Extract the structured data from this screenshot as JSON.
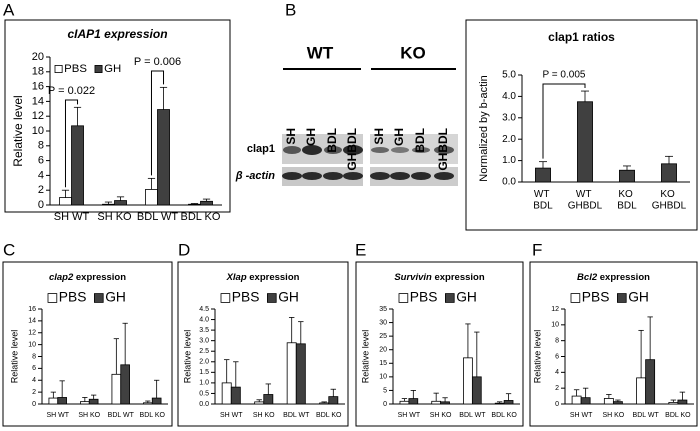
{
  "figure": {
    "panel_labels": [
      "A",
      "B",
      "C",
      "D",
      "E",
      "F"
    ],
    "blot": {
      "groups": [
        "WT",
        "KO"
      ],
      "lanes": [
        "SH",
        "GH",
        "BDL",
        "GHBDL"
      ],
      "rows": [
        "clap1",
        "β -actin"
      ]
    }
  },
  "chart_data": [
    {
      "type": "bar",
      "title": "cIAP1 expression",
      "ylabel": "Relative level",
      "categories": [
        "SH WT",
        "SH KO",
        "BDL WT",
        "BDL KO"
      ],
      "series": [
        {
          "name": "PBS",
          "color": "#ffffff",
          "values": [
            1,
            0.1,
            2.1,
            0.1
          ],
          "errors": [
            1,
            0.3,
            1.5,
            0.1
          ]
        },
        {
          "name": "GH",
          "color": "#404040",
          "values": [
            10.7,
            0.6,
            12.9,
            0.5
          ],
          "errors": [
            2.5,
            0.5,
            3,
            0.3
          ]
        }
      ],
      "ylim": [
        0,
        20
      ],
      "yticks": [
        0,
        2,
        4,
        6,
        8,
        10,
        12,
        14,
        16,
        18,
        20
      ],
      "annotations": [
        "P = 0.022",
        "P = 0.006"
      ],
      "legend": "top-left"
    },
    {
      "type": "bar",
      "title": "clap1 ratios",
      "ylabel": "Normalized by b-actin",
      "categories": [
        "WT BDL",
        "WT GHBDL",
        "KO BDL",
        "KO GHBDL"
      ],
      "series": [
        {
          "color": "#404040",
          "values": [
            0.65,
            3.75,
            0.55,
            0.85
          ],
          "errors": [
            0.3,
            0.5,
            0.2,
            0.35
          ]
        }
      ],
      "ylim": [
        0,
        5
      ],
      "yticks": [
        {
          "value": 0,
          "label": "0.0"
        },
        {
          "value": 1,
          "label": "1.0"
        },
        {
          "value": 2,
          "label": "2.0"
        },
        {
          "value": 3,
          "label": "3.0"
        },
        {
          "value": 4,
          "label": "4.0"
        },
        {
          "value": 5,
          "label": "5.0"
        }
      ],
      "annotations": [
        "P = 0.005"
      ]
    },
    {
      "type": "bar",
      "title": "clap2 expression",
      "ylabel": "Relative level",
      "categories": [
        "SH WT",
        "SH KO",
        "BDL WT",
        "BDL KO"
      ],
      "series": [
        {
          "name": "PBS",
          "color": "#ffffff",
          "values": [
            1,
            0.4,
            5,
            0.2
          ],
          "errors": [
            1,
            0.7,
            6,
            0.3
          ]
        },
        {
          "name": "GH",
          "color": "#404040",
          "values": [
            1.1,
            0.8,
            6.6,
            1
          ],
          "errors": [
            2.8,
            0.7,
            7,
            3
          ]
        }
      ],
      "ylim": [
        0,
        16
      ],
      "yticks": [
        0,
        2,
        4,
        6,
        8,
        10,
        12,
        14,
        16
      ],
      "legend": "top-left"
    },
    {
      "type": "bar",
      "title": "Xlap expression",
      "ylabel": "Relative level",
      "categories": [
        "SH WT",
        "SH KO",
        "BDL WT",
        "BDL KO"
      ],
      "series": [
        {
          "name": "PBS",
          "color": "#ffffff",
          "values": [
            1,
            0.1,
            2.9,
            0.05
          ],
          "errors": [
            1.1,
            0.1,
            1.2,
            0.05
          ]
        },
        {
          "name": "GH",
          "color": "#404040",
          "values": [
            0.8,
            0.45,
            2.85,
            0.35
          ],
          "errors": [
            1.2,
            0.5,
            1.05,
            0.35
          ]
        }
      ],
      "ylim": [
        0,
        4.5
      ],
      "yticks": [
        {
          "value": 0,
          "label": "0.0"
        },
        0.5,
        {
          "value": 1,
          "label": "1.0"
        },
        1.5,
        {
          "value": 2,
          "label": "2.0"
        },
        2.5,
        {
          "value": 3,
          "label": "3.0"
        },
        3.5,
        {
          "value": 4,
          "label": "4.0"
        },
        4.5
      ],
      "legend": "top-left"
    },
    {
      "type": "bar",
      "title": "Survivin expression",
      "ylabel": "Relative level",
      "categories": [
        "SH WT",
        "SH KO",
        "BDL WT",
        "BDL KO"
      ],
      "series": [
        {
          "name": "PBS",
          "color": "#ffffff",
          "values": [
            1,
            1,
            17,
            0.3
          ],
          "errors": [
            1,
            3,
            12.5,
            0.5
          ]
        },
        {
          "name": "GH",
          "color": "#404040",
          "values": [
            2,
            0.8,
            10,
            1.3
          ],
          "errors": [
            3,
            1.5,
            16.5,
            2.5
          ]
        }
      ],
      "ylim": [
        0,
        35
      ],
      "yticks": [
        0,
        5,
        10,
        15,
        20,
        25,
        30,
        35
      ],
      "legend": "top-left"
    },
    {
      "type": "bar",
      "title": "Bcl2 expression",
      "ylabel": "Relative level",
      "categories": [
        "SH WT",
        "SH KO",
        "BDL WT",
        "BDL KO"
      ],
      "series": [
        {
          "name": "PBS",
          "color": "#ffffff",
          "values": [
            1,
            0.7,
            3.3,
            0.2
          ],
          "errors": [
            0.8,
            0.5,
            6,
            0.3
          ]
        },
        {
          "name": "GH",
          "color": "#404040",
          "values": [
            0.8,
            0.3,
            5.6,
            0.5
          ],
          "errors": [
            1.2,
            0.2,
            5.4,
            1
          ]
        }
      ],
      "ylim": [
        0,
        12
      ],
      "yticks": [
        0,
        2,
        4,
        6,
        8,
        10,
        12
      ],
      "legend": "top-left"
    }
  ]
}
